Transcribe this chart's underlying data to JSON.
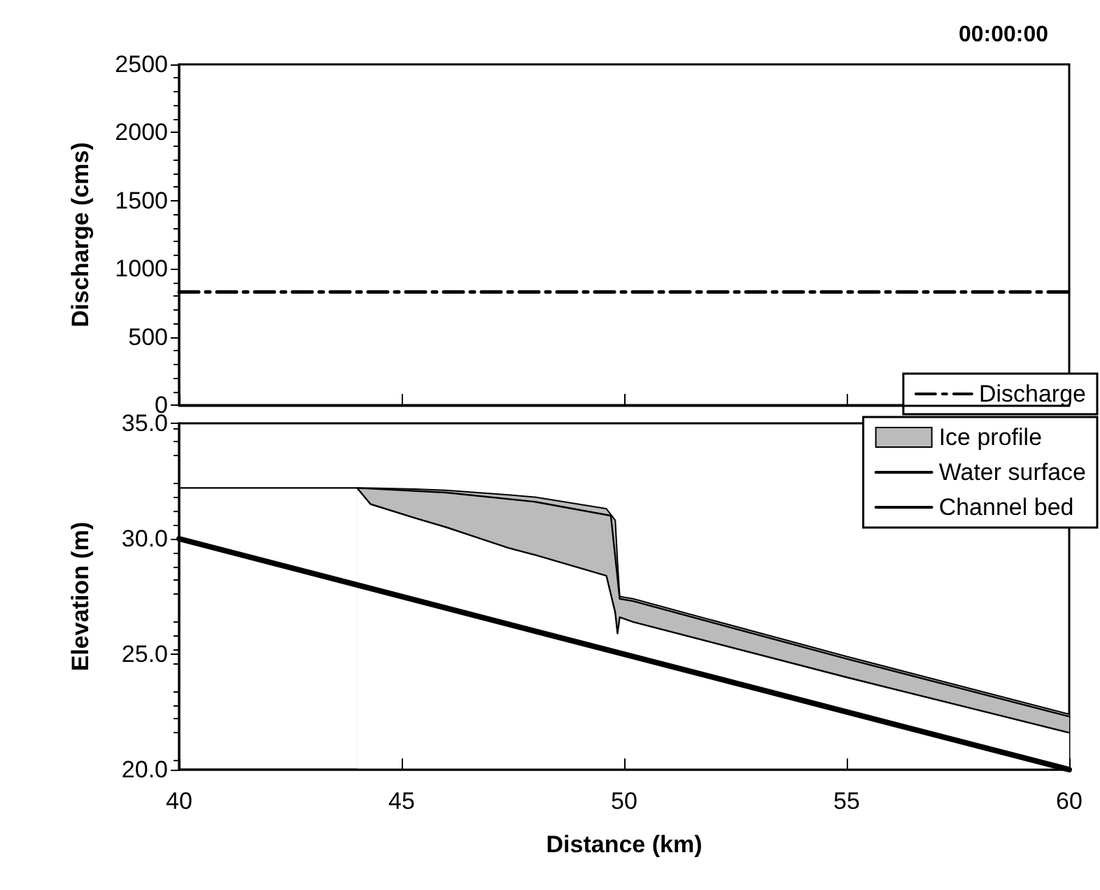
{
  "chart_data": [
    {
      "type": "line",
      "title": "00:00:00",
      "ylabel": "Discharge (cms)",
      "xlim": [
        40,
        60
      ],
      "xticks": [
        {
          "value": 40,
          "label": null
        },
        {
          "value": 45,
          "label": null
        },
        {
          "value": 50,
          "label": null
        },
        {
          "value": 55,
          "label": null
        },
        {
          "value": 60,
          "label": null
        }
      ],
      "ylim": [
        0,
        2500
      ],
      "yticks": [
        0,
        500,
        1000,
        1500,
        2000,
        2500
      ],
      "tick_labels": "y",
      "grid": false,
      "legend": "bottom right",
      "series": [
        {
          "name": "Discharge",
          "color": "#000000",
          "line_style": "dashed",
          "x": [
            40,
            60
          ],
          "values": [
            830,
            830
          ]
        }
      ]
    },
    {
      "type": "line",
      "xlabel": "Distance (km)",
      "ylabel": "Elevation (m)",
      "xlim": [
        40,
        60
      ],
      "xticks": [
        40,
        45,
        50,
        55,
        60
      ],
      "ylim": [
        20,
        35
      ],
      "yticks": [
        {
          "value": 20,
          "label": "20.0"
        },
        {
          "value": 25,
          "label": "25.0"
        },
        {
          "value": 30,
          "label": "30.0"
        },
        {
          "value": 35,
          "label": "35.0"
        }
      ],
      "grid": false,
      "legend": "top right",
      "series": [
        {
          "name": "Ice profile",
          "type": "area",
          "color": "#bbbbbb",
          "x": [
            44,
            44.3,
            45.3,
            46,
            47.4,
            48,
            49.6,
            49.8,
            49.85,
            49.9,
            50.2,
            55,
            60
          ],
          "values": [
            32.2,
            32.2,
            32.15,
            32.1,
            31.9,
            31.8,
            31.3,
            30.8,
            29,
            27.5,
            27.4,
            24.9,
            22.4
          ]
        },
        {
          "type": "line",
          "color": "#000000",
          "line_style": "solid",
          "x": [
            44,
            44.3,
            45.3,
            46,
            47.4,
            48,
            49.6,
            49.8,
            49.85,
            49.9,
            50.2,
            55,
            60
          ],
          "values": [
            32.2,
            31.5,
            30.9,
            30.5,
            29.6,
            29.3,
            28.4,
            26.8,
            25.9,
            26.6,
            26.4,
            24.0,
            21.6
          ]
        },
        {
          "name": "Water surface",
          "color": "#000000",
          "line_style": "solid",
          "x": [
            40,
            44,
            46,
            48,
            49.7,
            49.9,
            50.2,
            55,
            60
          ],
          "values": [
            32.2,
            32.2,
            32.0,
            31.6,
            31.0,
            27.4,
            27.3,
            24.8,
            22.3
          ]
        },
        {
          "name": "Channel bed",
          "color": "#000000",
          "line_style": "solid",
          "x": [
            40,
            60
          ],
          "values": [
            30.0,
            20.0
          ]
        }
      ]
    }
  ]
}
